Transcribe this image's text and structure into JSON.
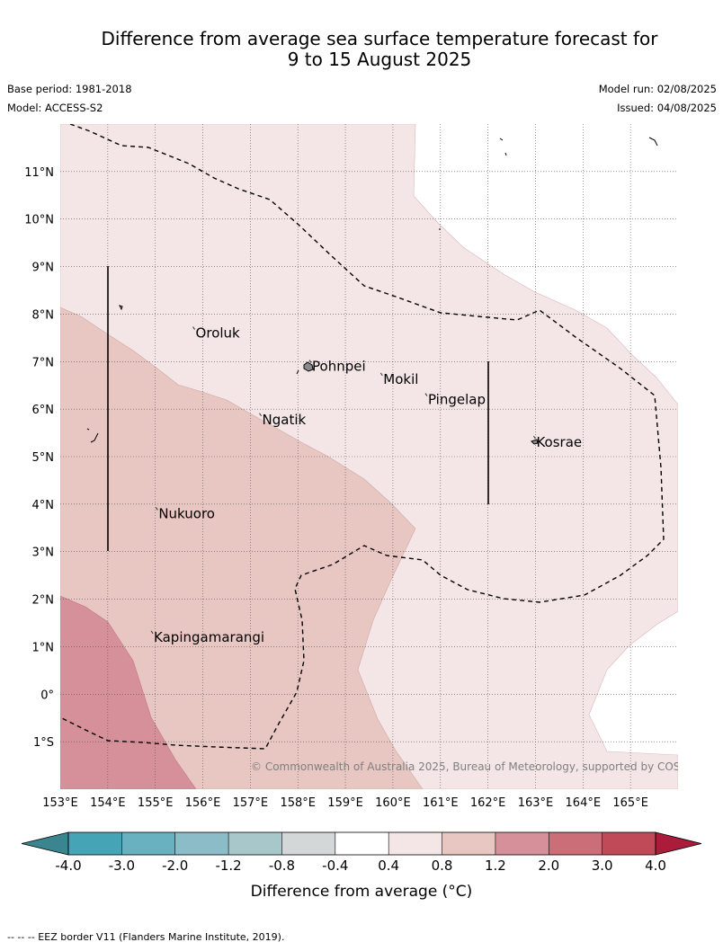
{
  "title_line1": "Difference from average sea surface temperature forecast for",
  "title_line2": "9 to 15 August 2025",
  "base_period": "Base period: 1981-2018",
  "model": "Model: ACCESS-S2",
  "model_run": "Model run: 02/08/2025",
  "issued": "Issued: 04/08/2025",
  "copyright": "© Commonwealth of Australia 2025, Bureau of Meteorology, supported by COSPPac",
  "footer": "--  --  -- EEZ border V11 (Flanders Marine Institute, 2019).",
  "map": {
    "lon_range": [
      153,
      166
    ],
    "lat_range": [
      -2,
      12
    ],
    "lon_labels": [
      "153°E",
      "154°E",
      "155°E",
      "156°E",
      "157°E",
      "158°E",
      "159°E",
      "160°E",
      "161°E",
      "162°E",
      "163°E",
      "164°E",
      "165°E"
    ],
    "lat_labels": [
      {
        "lat": 11,
        "text": "11°N"
      },
      {
        "lat": 10,
        "text": "10°N"
      },
      {
        "lat": 9,
        "text": "9°N"
      },
      {
        "lat": 8,
        "text": "8°N"
      },
      {
        "lat": 7,
        "text": "7°N"
      },
      {
        "lat": 6,
        "text": "6°N"
      },
      {
        "lat": 5,
        "text": "5°N"
      },
      {
        "lat": 4,
        "text": "4°N"
      },
      {
        "lat": 3,
        "text": "3°N"
      },
      {
        "lat": 2,
        "text": "2°N"
      },
      {
        "lat": 1,
        "text": "1°N"
      },
      {
        "lat": 0,
        "text": "0°"
      },
      {
        "lat": -1,
        "text": "1°S"
      }
    ],
    "places": [
      {
        "name": "Oroluk",
        "lon": 155.83,
        "lat": 7.6
      },
      {
        "name": "Pohnpei",
        "lon": 158.28,
        "lat": 6.9
      },
      {
        "name": "Mokil",
        "lon": 159.78,
        "lat": 6.63
      },
      {
        "name": "Pingelap",
        "lon": 160.72,
        "lat": 6.2
      },
      {
        "name": "Ngatik",
        "lon": 157.23,
        "lat": 5.78
      },
      {
        "name": "Kosrae",
        "lon": 163.0,
        "lat": 5.3
      },
      {
        "name": "Nukuoro",
        "lon": 155.05,
        "lat": 3.8
      },
      {
        "name": "Kapingamarangi",
        "lon": 154.95,
        "lat": 1.2
      }
    ]
  },
  "legend": {
    "title": "Difference from average (°C)",
    "ticks": [
      "-4.0",
      "-3.0",
      "-2.0",
      "-1.2",
      "-0.8",
      "-0.4",
      "0.4",
      "0.8",
      "1.2",
      "2.0",
      "3.0",
      "4.0"
    ],
    "colors": [
      "#46a4b7",
      "#69b1c1",
      "#8cbcc7",
      "#a8c7cb",
      "#d3d7d7",
      "#ffffff",
      "#f4e6e6",
      "#e8c6c1",
      "#d6909a",
      "#cc6e78",
      "#c14a59"
    ],
    "extend_low": "#3b8591",
    "extend_high": "#ab1c3b"
  },
  "chart_data": {
    "type": "heatmap",
    "variable": "Difference from average (°C)",
    "anomaly_zones": [
      {
        "range": "0.4 to 0.8",
        "color": "#f4e6e6"
      },
      {
        "range": "0.8 to 1.2",
        "color": "#e8c6c1"
      },
      {
        "range": "1.2 to 2.0",
        "color": "#d6909a"
      }
    ]
  }
}
